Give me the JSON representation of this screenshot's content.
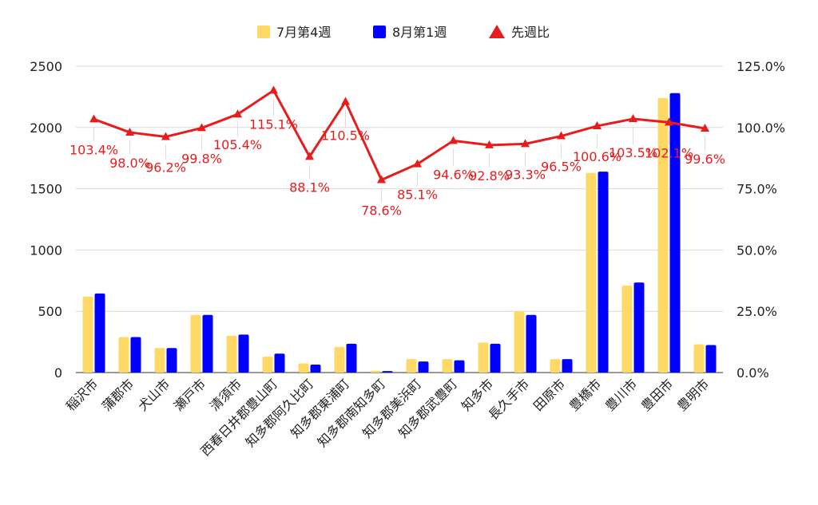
{
  "chart_data": {
    "type": "bar",
    "title": "",
    "categories": [
      "稲沢市",
      "蒲郡市",
      "犬山市",
      "瀬戸市",
      "清須市",
      "西春日井郡豊山町",
      "知多郡阿久比町",
      "知多郡東浦町",
      "知多郡南知多町",
      "知多郡美浜町",
      "知多郡武豊町",
      "知多市",
      "長久手市",
      "田原市",
      "豊橋市",
      "豊川市",
      "豊田市",
      "豊明市"
    ],
    "series": [
      {
        "name": "7月第4週",
        "type": "bar",
        "axis": "left",
        "color": "#ffd966",
        "values": [
          620,
          290,
          200,
          470,
          300,
          130,
          75,
          210,
          15,
          110,
          110,
          245,
          500,
          110,
          1630,
          710,
          2240,
          230
        ]
      },
      {
        "name": "8月第1週",
        "type": "bar",
        "axis": "left",
        "color": "#0000ff",
        "values": [
          645,
          290,
          200,
          470,
          310,
          155,
          65,
          235,
          12,
          90,
          100,
          235,
          470,
          110,
          1640,
          735,
          2280,
          225
        ]
      },
      {
        "name": "先週比",
        "type": "line",
        "axis": "right",
        "color": "#e81c1c",
        "values": [
          103.4,
          98.0,
          96.2,
          99.8,
          105.4,
          115.1,
          88.1,
          110.5,
          78.6,
          85.1,
          94.6,
          92.8,
          93.3,
          96.5,
          100.6,
          103.5,
          102.1,
          99.6
        ],
        "labels": [
          "103.4%",
          "98.0%",
          "96.2%",
          "99.8%",
          "105.4%",
          "115.1%",
          "88.1%",
          "110.5%",
          "78.6%",
          "85.1%",
          "94.6%",
          "92.8%",
          "93.3%",
          "96.5%",
          "100.6%",
          "103.5%",
          "102.1%",
          "99.6%"
        ]
      }
    ],
    "y_left": {
      "min": 0,
      "max": 2500,
      "ticks": [
        "0",
        "500",
        "1000",
        "1500",
        "2000",
        "2500"
      ]
    },
    "y_right": {
      "min": 0,
      "max": 125,
      "ticks": [
        "0.0%",
        "25.0%",
        "50.0%",
        "75.0%",
        "100.0%",
        "125.0%"
      ]
    },
    "grid": true,
    "legend_position": "top"
  }
}
